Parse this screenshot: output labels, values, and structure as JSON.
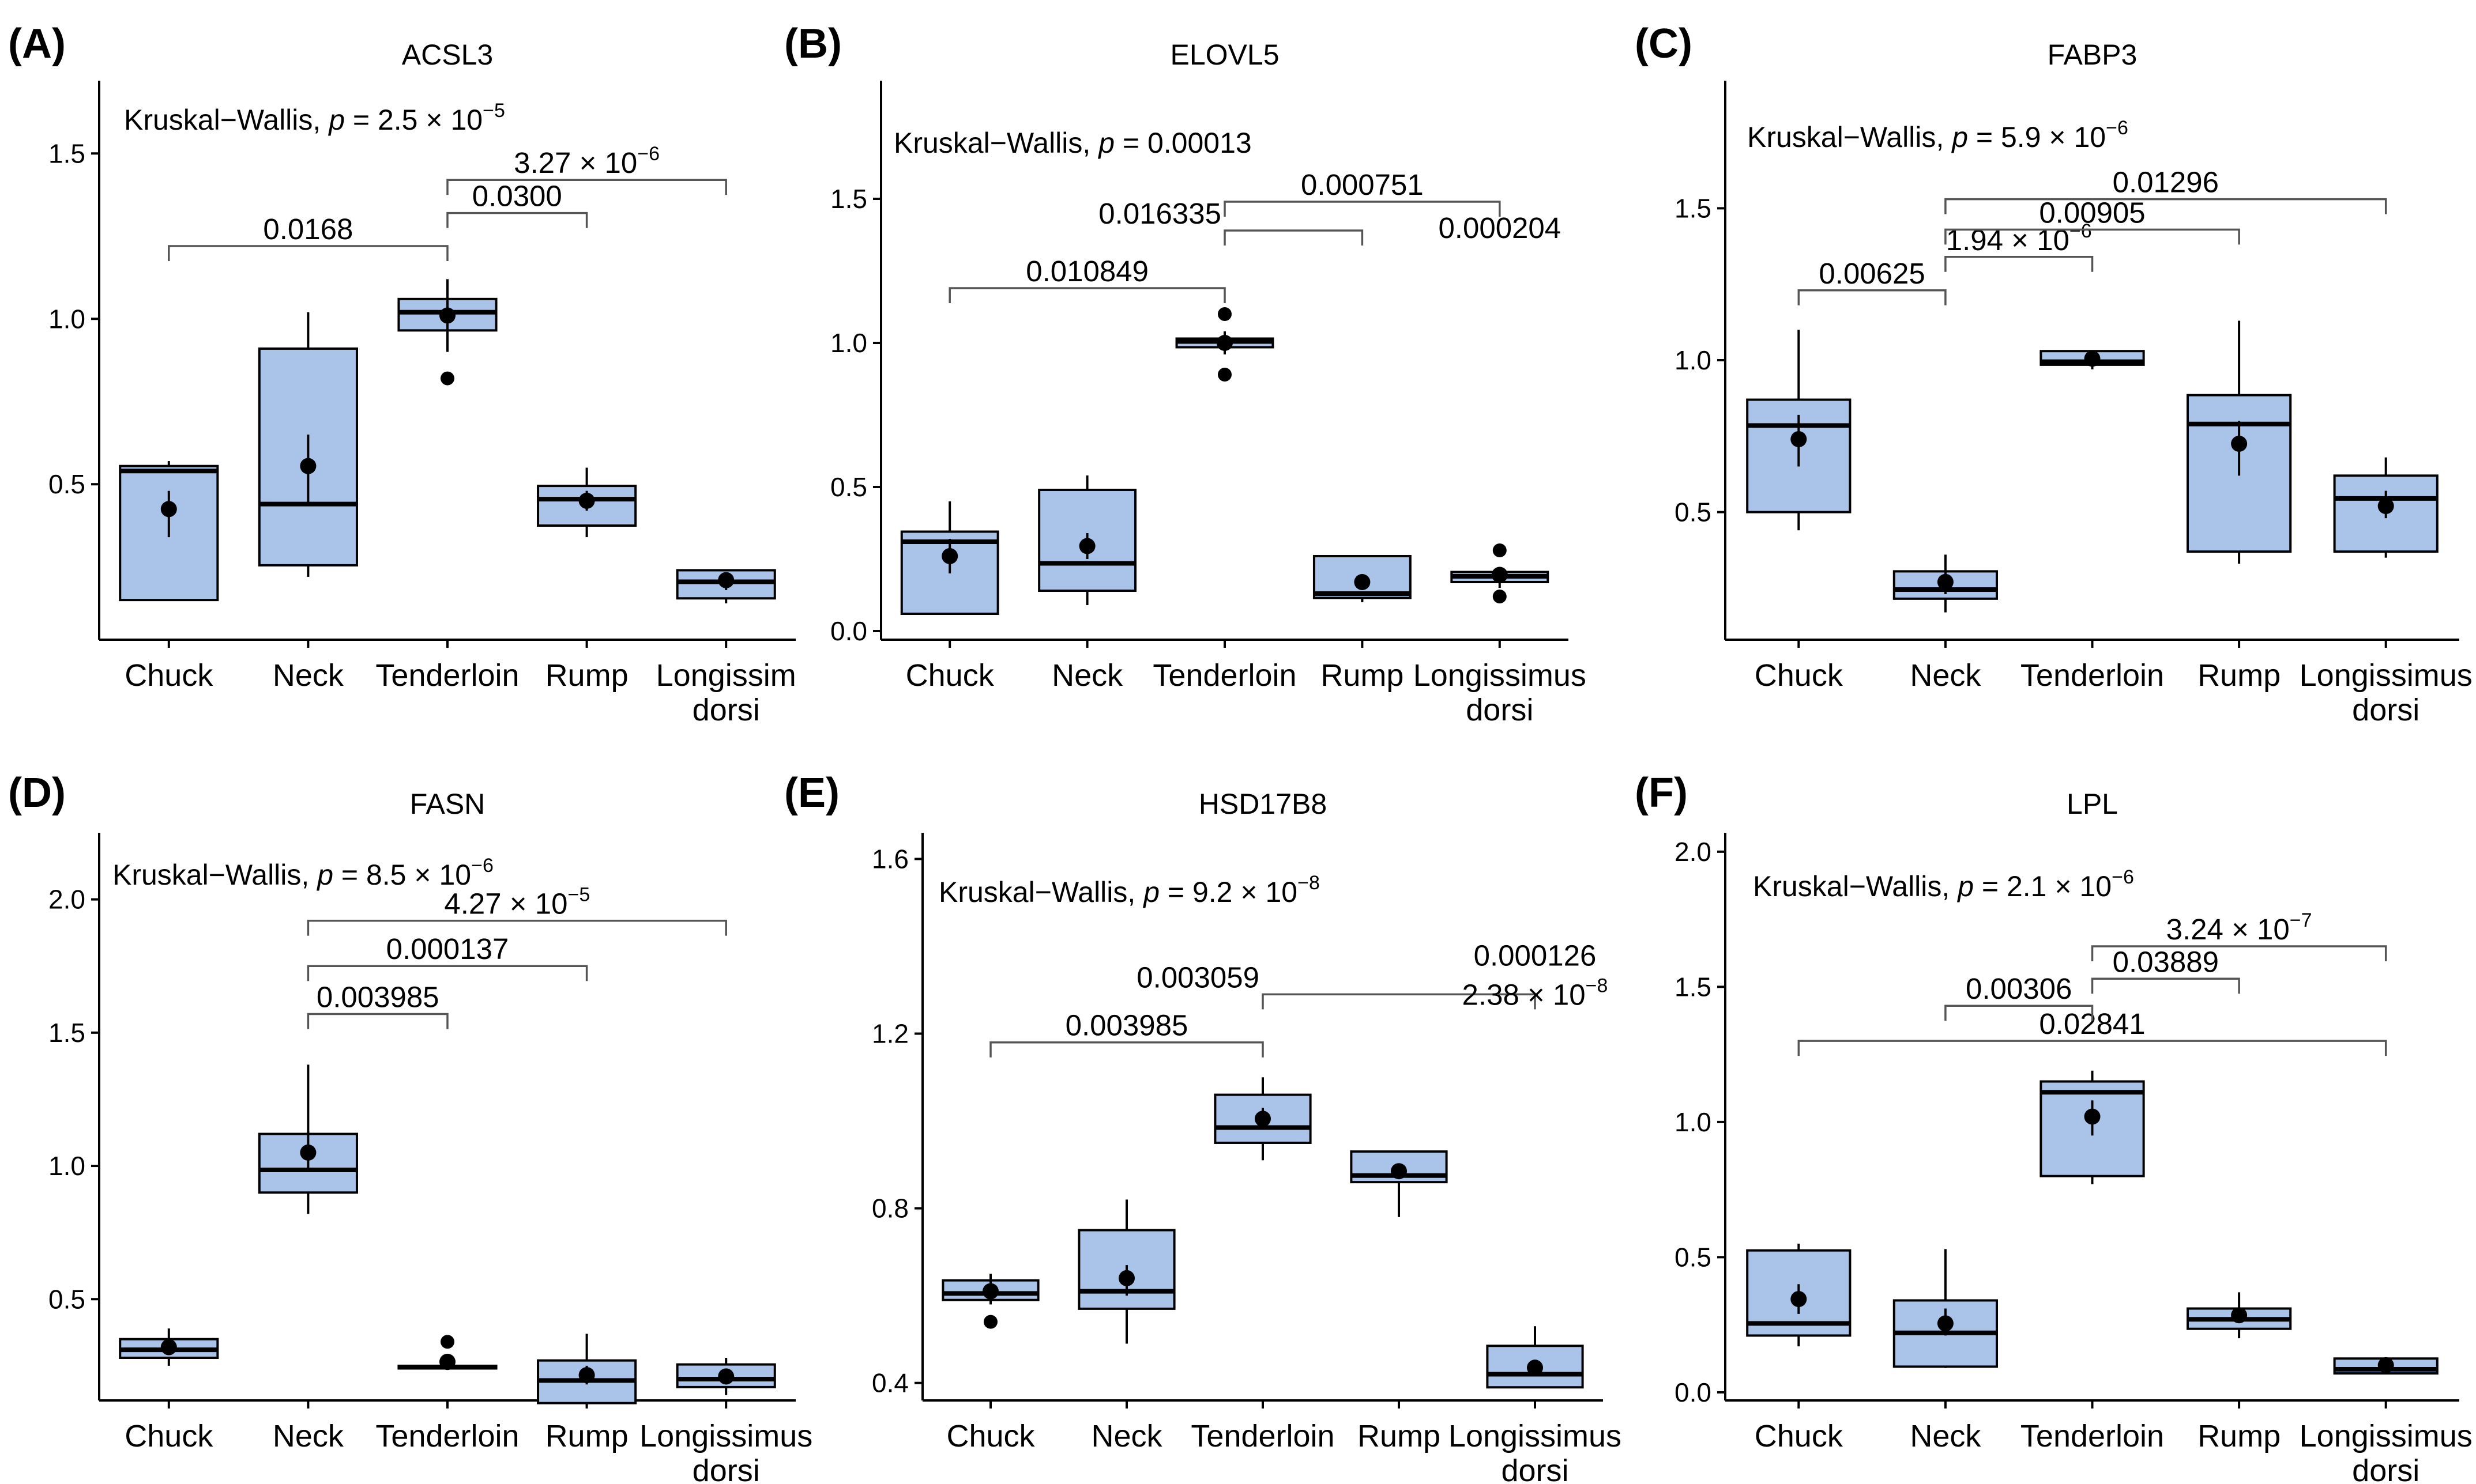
{
  "figure": {
    "categories": [
      "Chuck",
      "Neck",
      "Tenderloin",
      "Rump",
      "Longissimus dorsi"
    ]
  },
  "chart_data": [
    {
      "panel": "(A)",
      "type": "box",
      "title": "ACSL3",
      "test": {
        "prefix": "Kruskal−Wallis, ",
        "p_italic": "p",
        "value": " = 2.5 × 10",
        "exponent": "−5"
      },
      "ylim": [
        0.03,
        1.72
      ],
      "yticks": [
        0.5,
        1.0,
        1.5
      ],
      "ytick_labels": [
        "0.5",
        "1.0",
        "1.5"
      ],
      "category_labels": [
        [
          "Chuck"
        ],
        [
          "Neck"
        ],
        [
          "Tenderloin"
        ],
        [
          "Rump"
        ],
        [
          "Longissim",
          "dorsi"
        ]
      ],
      "boxes": [
        {
          "category": "Chuck",
          "q1": 0.15,
          "median": 0.54,
          "q3": 0.555,
          "whisker_low": 0.15,
          "whisker_high": 0.57,
          "mean": 0.425,
          "mean_err": [
            0.34,
            0.48
          ],
          "outliers": []
        },
        {
          "category": "Neck",
          "q1": 0.255,
          "median": 0.44,
          "q3": 0.91,
          "whisker_low": 0.22,
          "whisker_high": 1.02,
          "mean": 0.555,
          "mean_err": [
            0.44,
            0.65
          ],
          "outliers": []
        },
        {
          "category": "Tenderloin",
          "q1": 0.965,
          "median": 1.02,
          "q3": 1.06,
          "whisker_low": 0.9,
          "whisker_high": 1.12,
          "mean": 1.01,
          "mean_err": [
            0.95,
            1.07
          ],
          "outliers": [
            0.82
          ]
        },
        {
          "category": "Rump",
          "q1": 0.375,
          "median": 0.455,
          "q3": 0.495,
          "whisker_low": 0.34,
          "whisker_high": 0.55,
          "mean": 0.45,
          "mean_err": [
            0.42,
            0.48
          ],
          "outliers": []
        },
        {
          "category": "Longissimus dorsi",
          "q1": 0.155,
          "median": 0.205,
          "q3": 0.24,
          "whisker_low": 0.14,
          "whisker_high": 0.24,
          "mean": 0.21,
          "mean_err": [
            0.18,
            0.23
          ],
          "outliers": []
        }
      ],
      "comparisons": [
        {
          "from": 0,
          "to": 2,
          "y": 1.22,
          "label": "0.0168"
        },
        {
          "from": 2,
          "to": 3,
          "y": 1.32,
          "label": "0.0300"
        },
        {
          "from": 2,
          "to": 4,
          "y": 1.42,
          "label": "3.27 × 10",
          "exponent": "−6"
        }
      ]
    },
    {
      "panel": "(B)",
      "type": "box",
      "title": "ELOVL5",
      "test": {
        "prefix": "Kruskal−Wallis, ",
        "p_italic": "p",
        "value": " = 0.00013",
        "exponent": ""
      },
      "ylim": [
        -0.03,
        1.91
      ],
      "yticks": [
        0.0,
        0.5,
        1.0,
        1.5
      ],
      "ytick_labels": [
        "0.0",
        "0.5",
        "1.0",
        "1.5"
      ],
      "category_labels": [
        [
          "Chuck"
        ],
        [
          "Neck"
        ],
        [
          "Tenderloin"
        ],
        [
          "Rump"
        ],
        [
          "Longissimus",
          "dorsi"
        ]
      ],
      "boxes": [
        {
          "category": "Chuck",
          "q1": 0.06,
          "median": 0.31,
          "q3": 0.345,
          "whisker_low": 0.06,
          "whisker_high": 0.45,
          "mean": 0.26,
          "mean_err": [
            0.2,
            0.32
          ],
          "outliers": []
        },
        {
          "category": "Neck",
          "q1": 0.14,
          "median": 0.235,
          "q3": 0.49,
          "whisker_low": 0.09,
          "whisker_high": 0.54,
          "mean": 0.295,
          "mean_err": [
            0.25,
            0.34
          ],
          "outliers": []
        },
        {
          "category": "Tenderloin",
          "q1": 0.985,
          "median": 1.005,
          "q3": 1.015,
          "whisker_low": 0.96,
          "whisker_high": 1.04,
          "mean": 1.0,
          "mean_err": [
            0.96,
            1.04
          ],
          "outliers": [
            1.1,
            0.89
          ]
        },
        {
          "category": "Rump",
          "q1": 0.115,
          "median": 0.13,
          "q3": 0.26,
          "whisker_low": 0.1,
          "whisker_high": 0.26,
          "mean": 0.17,
          "mean_err": [
            0.15,
            0.19
          ],
          "outliers": []
        },
        {
          "category": "Longissimus dorsi",
          "q1": 0.17,
          "median": 0.19,
          "q3": 0.205,
          "whisker_low": 0.15,
          "whisker_high": 0.21,
          "mean": 0.195,
          "mean_err": [
            0.17,
            0.22
          ],
          "outliers": [
            0.28,
            0.12
          ]
        }
      ],
      "comparisons": [
        {
          "from": 0,
          "to": 2,
          "y": 1.19,
          "label": "0.010849"
        },
        {
          "from": 2,
          "to": 3,
          "y": 1.39,
          "label": "0.016335",
          "label_side": "left"
        },
        {
          "from": 2,
          "to": 4,
          "y": 1.49,
          "label": "0.000751"
        }
      ],
      "extra_labels": [
        {
          "text": "0.000204",
          "at_category": 4.0,
          "y": 1.34
        }
      ]
    },
    {
      "panel": "(C)",
      "type": "box",
      "title": "FABP3",
      "test": {
        "prefix": "Kruskal−Wallis, ",
        "p_italic": "p",
        "value": " = 5.9 × 10",
        "exponent": "−6"
      },
      "ylim": [
        0.08,
        1.92
      ],
      "yticks": [
        0.5,
        1.0,
        1.5
      ],
      "ytick_labels": [
        "0.5",
        "1.0",
        "1.5"
      ],
      "category_labels": [
        [
          "Chuck"
        ],
        [
          "Neck"
        ],
        [
          "Tenderloin"
        ],
        [
          "Rump"
        ],
        [
          "Longissimus",
          "dorsi"
        ]
      ],
      "boxes": [
        {
          "category": "Chuck",
          "q1": 0.5,
          "median": 0.785,
          "q3": 0.87,
          "whisker_low": 0.44,
          "whisker_high": 1.1,
          "mean": 0.74,
          "mean_err": [
            0.65,
            0.82
          ],
          "outliers": []
        },
        {
          "category": "Neck",
          "q1": 0.215,
          "median": 0.245,
          "q3": 0.305,
          "whisker_low": 0.17,
          "whisker_high": 0.36,
          "mean": 0.27,
          "mean_err": [
            0.23,
            0.31
          ],
          "outliers": []
        },
        {
          "category": "Tenderloin",
          "q1": 0.985,
          "median": 0.995,
          "q3": 1.03,
          "whisker_low": 0.97,
          "whisker_high": 1.03,
          "mean": 1.005,
          "mean_err": [
            0.99,
            1.02
          ],
          "outliers": []
        },
        {
          "category": "Rump",
          "q1": 0.37,
          "median": 0.79,
          "q3": 0.885,
          "whisker_low": 0.33,
          "whisker_high": 1.13,
          "mean": 0.725,
          "mean_err": [
            0.62,
            0.8
          ],
          "outliers": []
        },
        {
          "category": "Longissimus dorsi",
          "q1": 0.37,
          "median": 0.545,
          "q3": 0.62,
          "whisker_low": 0.35,
          "whisker_high": 0.68,
          "mean": 0.52,
          "mean_err": [
            0.48,
            0.57
          ],
          "outliers": []
        }
      ],
      "comparisons": [
        {
          "from": 0,
          "to": 1,
          "y": 1.23,
          "label": "0.00625"
        },
        {
          "from": 1,
          "to": 2,
          "y": 1.34,
          "label": "1.94 × 10",
          "exponent": "−6"
        },
        {
          "from": 1,
          "to": 3,
          "y": 1.43,
          "label": "0.00905"
        },
        {
          "from": 1,
          "to": 4,
          "y": 1.53,
          "label": "0.01296"
        }
      ]
    },
    {
      "panel": "(D)",
      "type": "box",
      "title": "FASN",
      "test": {
        "prefix": "Kruskal−Wallis, ",
        "p_italic": "p",
        "value": " = 8.5 × 10",
        "exponent": "−6"
      },
      "ylim": [
        0.12,
        2.25
      ],
      "yticks": [
        0.5,
        1.0,
        1.5,
        2.0
      ],
      "ytick_labels": [
        "0.5",
        "1.0",
        "1.5",
        "2.0"
      ],
      "category_labels": [
        [
          "Chuck"
        ],
        [
          "Neck"
        ],
        [
          "Tenderloin"
        ],
        [
          "Rump"
        ],
        [
          "Longissimus",
          "dorsi"
        ]
      ],
      "boxes": [
        {
          "category": "Chuck",
          "q1": 0.28,
          "median": 0.31,
          "q3": 0.35,
          "whisker_low": 0.25,
          "whisker_high": 0.39,
          "mean": 0.32,
          "mean_err": [
            0.29,
            0.35
          ],
          "outliers": []
        },
        {
          "category": "Neck",
          "q1": 0.9,
          "median": 0.985,
          "q3": 1.12,
          "whisker_low": 0.82,
          "whisker_high": 1.38,
          "mean": 1.05,
          "mean_err": [
            0.98,
            1.13
          ],
          "outliers": []
        },
        {
          "category": "Tenderloin",
          "q1": 0.24,
          "median": 0.245,
          "q3": 0.25,
          "whisker_low": 0.24,
          "whisker_high": 0.25,
          "mean": 0.265,
          "mean_err": [
            0.24,
            0.29
          ],
          "outliers": [
            0.34,
            0.26
          ]
        },
        {
          "category": "Rump",
          "q1": 0.11,
          "median": 0.195,
          "q3": 0.27,
          "whisker_low": 0.1,
          "whisker_high": 0.37,
          "mean": 0.215,
          "mean_err": [
            0.18,
            0.25
          ],
          "outliers": []
        },
        {
          "category": "Longissimus dorsi",
          "q1": 0.17,
          "median": 0.2,
          "q3": 0.255,
          "whisker_low": 0.14,
          "whisker_high": 0.28,
          "mean": 0.21,
          "mean_err": [
            0.18,
            0.24
          ],
          "outliers": []
        }
      ],
      "comparisons": [
        {
          "from": 1,
          "to": 2,
          "y": 1.57,
          "label": "0.003985"
        },
        {
          "from": 1,
          "to": 3,
          "y": 1.75,
          "label": "0.000137"
        },
        {
          "from": 1,
          "to": 4,
          "y": 1.92,
          "label": "4.27 × 10",
          "exponent": "−5"
        }
      ]
    },
    {
      "panel": "(E)",
      "type": "box",
      "title": "HSD17B8",
      "test": {
        "prefix": "Kruskal−Wallis, ",
        "p_italic": "p",
        "value": " = 9.2 × 10",
        "exponent": "−8"
      },
      "ylim": [
        0.36,
        1.66
      ],
      "yticks": [
        0.4,
        0.8,
        1.2,
        1.6
      ],
      "ytick_labels": [
        "0.4",
        "0.8",
        "1.2",
        "1.6"
      ],
      "category_labels": [
        [
          "Chuck"
        ],
        [
          "Neck"
        ],
        [
          "Tenderloin"
        ],
        [
          "Rump"
        ],
        [
          "Longissimus",
          "dorsi"
        ]
      ],
      "boxes": [
        {
          "category": "Chuck",
          "q1": 0.59,
          "median": 0.605,
          "q3": 0.635,
          "whisker_low": 0.58,
          "whisker_high": 0.65,
          "mean": 0.61,
          "mean_err": [
            0.58,
            0.64
          ],
          "outliers": [
            0.54
          ]
        },
        {
          "category": "Neck",
          "q1": 0.57,
          "median": 0.61,
          "q3": 0.75,
          "whisker_low": 0.49,
          "whisker_high": 0.82,
          "mean": 0.64,
          "mean_err": [
            0.6,
            0.67
          ],
          "outliers": []
        },
        {
          "category": "Tenderloin",
          "q1": 0.95,
          "median": 0.985,
          "q3": 1.06,
          "whisker_low": 0.91,
          "whisker_high": 1.1,
          "mean": 1.005,
          "mean_err": [
            0.98,
            1.03
          ],
          "outliers": []
        },
        {
          "category": "Rump",
          "q1": 0.86,
          "median": 0.875,
          "q3": 0.93,
          "whisker_low": 0.78,
          "whisker_high": 0.93,
          "mean": 0.885,
          "mean_err": [
            0.87,
            0.9
          ],
          "outliers": []
        },
        {
          "category": "Longissimus dorsi",
          "q1": 0.39,
          "median": 0.42,
          "q3": 0.485,
          "whisker_low": 0.39,
          "whisker_high": 0.53,
          "mean": 0.435,
          "mean_err": [
            0.42,
            0.45
          ],
          "outliers": []
        }
      ],
      "comparisons": [
        {
          "from": 0,
          "to": 2,
          "y": 1.18,
          "label": "0.003985"
        },
        {
          "from": 2,
          "to": 4,
          "y": 1.29,
          "label": "0.003059",
          "label_side": "left"
        }
      ],
      "extra_labels": [
        {
          "text": "0.000126",
          "at_category": 4.0,
          "y": 1.34
        },
        {
          "text": "2.38 × 10",
          "exponent": "−8",
          "at_category": 4.0,
          "y": 1.25
        }
      ]
    },
    {
      "panel": "(F)",
      "type": "box",
      "title": "LPL",
      "test": {
        "prefix": "Kruskal−Wallis, ",
        "p_italic": "p",
        "value": " = 2.1 × 10",
        "exponent": "−6"
      },
      "ylim": [
        -0.03,
        2.07
      ],
      "yticks": [
        0.0,
        0.5,
        1.0,
        1.5,
        2.0
      ],
      "ytick_labels": [
        "0.0",
        "0.5",
        "1.0",
        "1.5",
        "2.0"
      ],
      "category_labels": [
        [
          "Chuck"
        ],
        [
          "Neck"
        ],
        [
          "Tenderloin"
        ],
        [
          "Rump"
        ],
        [
          "Longissimus",
          "dorsi"
        ]
      ],
      "boxes": [
        {
          "category": "Chuck",
          "q1": 0.21,
          "median": 0.255,
          "q3": 0.525,
          "whisker_low": 0.17,
          "whisker_high": 0.55,
          "mean": 0.345,
          "mean_err": [
            0.29,
            0.4
          ],
          "outliers": []
        },
        {
          "category": "Neck",
          "q1": 0.095,
          "median": 0.22,
          "q3": 0.34,
          "whisker_low": 0.09,
          "whisker_high": 0.53,
          "mean": 0.255,
          "mean_err": [
            0.21,
            0.31
          ],
          "outliers": []
        },
        {
          "category": "Tenderloin",
          "q1": 0.8,
          "median": 1.11,
          "q3": 1.15,
          "whisker_low": 0.77,
          "whisker_high": 1.19,
          "mean": 1.02,
          "mean_err": [
            0.95,
            1.08
          ],
          "outliers": []
        },
        {
          "category": "Rump",
          "q1": 0.235,
          "median": 0.27,
          "q3": 0.31,
          "whisker_low": 0.2,
          "whisker_high": 0.37,
          "mean": 0.285,
          "mean_err": [
            0.26,
            0.31
          ],
          "outliers": []
        },
        {
          "category": "Longissimus dorsi",
          "q1": 0.07,
          "median": 0.085,
          "q3": 0.125,
          "whisker_low": 0.07,
          "whisker_high": 0.13,
          "mean": 0.1,
          "mean_err": [
            0.08,
            0.12
          ],
          "outliers": []
        }
      ],
      "comparisons": [
        {
          "from": 0,
          "to": 4,
          "y": 1.3,
          "label": "0.02841"
        },
        {
          "from": 1,
          "to": 2,
          "y": 1.43,
          "label": "0.00306"
        },
        {
          "from": 2,
          "to": 3,
          "y": 1.53,
          "label": "0.03889"
        },
        {
          "from": 2,
          "to": 4,
          "y": 1.65,
          "label": "3.24 × 10",
          "exponent": "−7"
        }
      ]
    }
  ]
}
